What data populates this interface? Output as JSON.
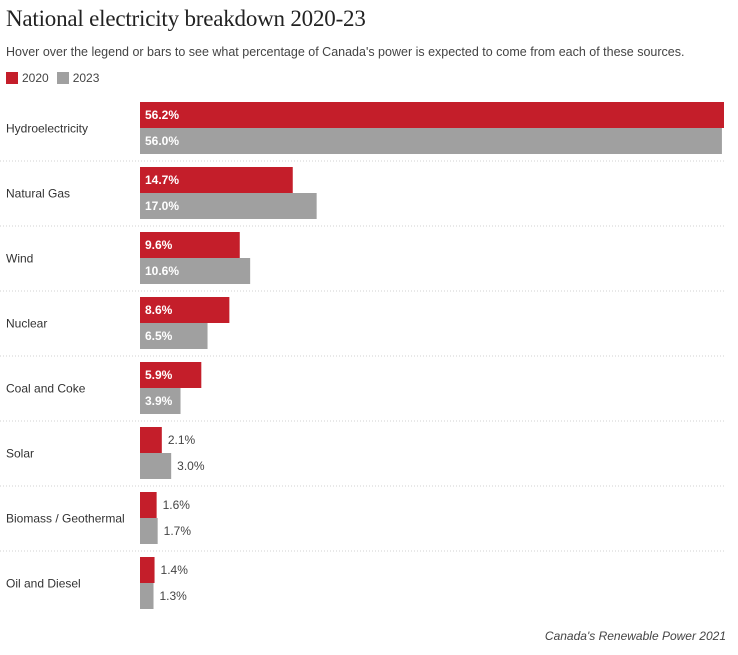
{
  "header": {
    "title": "National electricity breakdown 2020-23",
    "subtitle": "Hover over the legend or bars to see what percentage of Canada's power is expected to come from each of these sources."
  },
  "source": "Canada's Renewable Power 2021",
  "colors": {
    "series_2020": "#c41e2a",
    "series_2023": "#a0a0a0",
    "divider": "#d0d0d0"
  },
  "chart_data": {
    "type": "bar",
    "orientation": "horizontal",
    "title": "National electricity breakdown 2020-23",
    "categories": [
      "Hydroelectricity",
      "Natural Gas",
      "Wind",
      "Nuclear",
      "Coal and Coke",
      "Solar",
      "Biomass / Geothermal",
      "Oil and Diesel"
    ],
    "series": [
      {
        "name": "2020",
        "values": [
          56.2,
          14.7,
          9.6,
          8.6,
          5.9,
          2.1,
          1.6,
          1.4
        ]
      },
      {
        "name": "2023",
        "values": [
          56.0,
          17.0,
          10.6,
          6.5,
          3.9,
          3.0,
          1.7,
          1.3
        ]
      }
    ],
    "value_suffix": "%",
    "xlim": [
      0,
      56.2
    ],
    "legend": "top-left",
    "grid": false
  }
}
